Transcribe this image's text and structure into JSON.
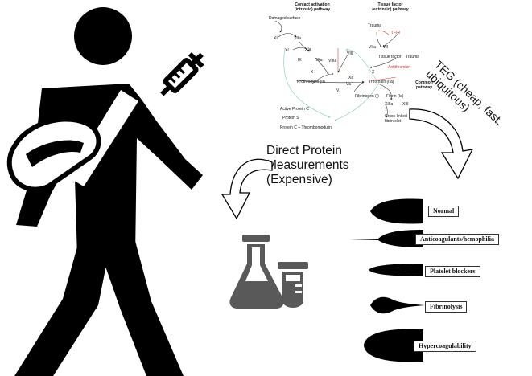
{
  "cascade": {
    "intrinsic_title": [
      "Contact activation",
      "(intrinsic) pathway"
    ],
    "extrinsic_title": [
      "Tissue factor",
      "(extrinsic) pathway"
    ],
    "common_title": [
      "Common",
      "pathway"
    ],
    "nodes": {
      "damaged_surface": "Damaged surface",
      "xii": "XII",
      "xiia": "XIIa",
      "xi": "XI",
      "xia": "XIa",
      "ix": "IX",
      "ixa": "IXa",
      "viiia": "VIIIa",
      "viii": "VIII",
      "trauma_top": "Trauma",
      "tfpi": "TFPI",
      "viia": "VIIa",
      "vii": "VII",
      "tissue_factor": "Tissue factor",
      "trauma_right": "Trauma",
      "antithrombin": "Antithrombin",
      "x_left": "X",
      "x_right": "X",
      "xa": "Xa",
      "va": "Va",
      "v": "V",
      "prothrombin": "Prothrombin (II)",
      "thrombin": "Thrombin (IIa)",
      "fibrinogen": "Fibrinogen (I)",
      "fibrin": "Fibrin (Ia)",
      "xiiia": "XIIIa",
      "xiii": "XIII",
      "cross_linked": [
        "Cross-linked",
        "fibrin clot"
      ],
      "active_protein_c": "Active Protein C",
      "protein_s": "Protein S",
      "protein_c_complex": "Protein C + Thrombomodulin"
    }
  },
  "labels": {
    "direct_protein": [
      "Direct Protein",
      "Measurements",
      "(Expensive)"
    ],
    "teg": [
      "TEG (cheap, fast,",
      "ubiquitous)"
    ]
  },
  "teg_patterns": [
    {
      "name": "Normal"
    },
    {
      "name": "Anticoagulants/hemophilia"
    },
    {
      "name": "Platelet blockers"
    },
    {
      "name": "Fibrinolysis"
    },
    {
      "name": "Hypercoagulability"
    }
  ],
  "icons": {
    "person": "injured-person-with-sling-icon",
    "syringe": "syringe-icon",
    "lab": "lab-flask-test-tube-icon"
  },
  "colors": {
    "ink": "#000000",
    "inhibitor": "#d9413b",
    "feedback": "#7fc9b8"
  }
}
